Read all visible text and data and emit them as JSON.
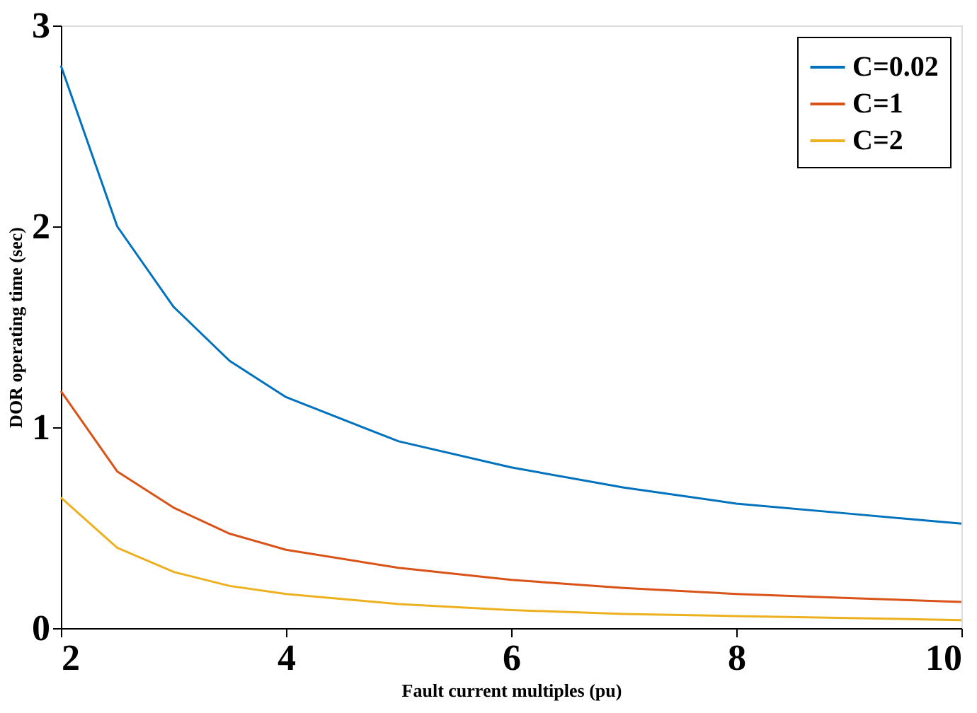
{
  "chart_data": {
    "type": "line",
    "xlabel": "Fault current multiples (pu)",
    "ylabel": "DOR    operating time (sec)",
    "x": [
      2,
      2.5,
      3,
      3.5,
      4,
      5,
      6,
      7,
      8,
      9,
      10
    ],
    "series": [
      {
        "name": "C=0.02",
        "color": "#0072bd",
        "values": [
          2.8,
          2.0,
          1.6,
          1.33,
          1.15,
          0.93,
          0.8,
          0.7,
          0.62,
          0.57,
          0.52
        ]
      },
      {
        "name": "C=1",
        "color": "#d95319",
        "values": [
          1.18,
          0.78,
          0.6,
          0.47,
          0.39,
          0.3,
          0.24,
          0.2,
          0.17,
          0.15,
          0.13
        ]
      },
      {
        "name": "C=2",
        "color": "#edb120",
        "values": [
          0.65,
          0.4,
          0.28,
          0.21,
          0.17,
          0.12,
          0.09,
          0.07,
          0.06,
          0.05,
          0.04
        ]
      }
    ],
    "xlim": [
      2,
      10
    ],
    "xticks": [
      2,
      4,
      6,
      8,
      10
    ],
    "ylim": [
      0,
      3
    ],
    "yticks": [
      0,
      1,
      2,
      3
    ],
    "grid": false,
    "legend": "top right",
    "marker": "none",
    "line_style": "solid"
  }
}
